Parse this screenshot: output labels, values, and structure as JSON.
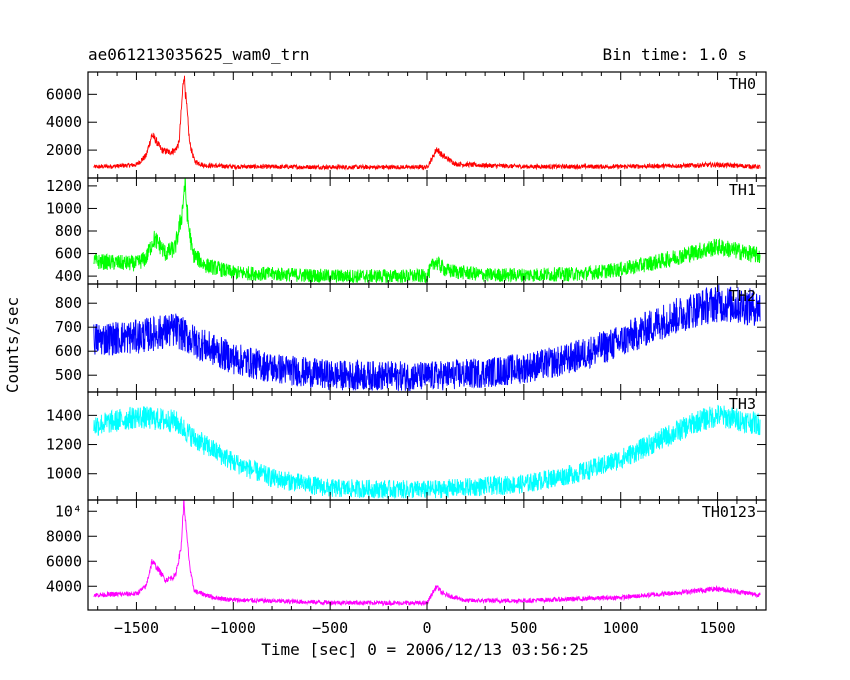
{
  "chart_data": {
    "type": "line",
    "title": "ae061213035625_wam0_trn",
    "bin_time_label": "Bin time: 1.0 s",
    "xlabel": "Time [sec] 0 = 2006/12/13 03:56:25",
    "ylabel": "Counts/sec",
    "xlim": [
      -1750,
      1750
    ],
    "x_ticks": [
      -1500,
      -1000,
      -500,
      0,
      500,
      1000,
      1500
    ],
    "x_tick_labels": [
      "−1500",
      "−1000",
      "−500",
      "0",
      "500",
      "1000",
      "1500"
    ],
    "panels": [
      {
        "name": "TH0",
        "color": "#ff0000",
        "ylim": [
          0,
          7600
        ],
        "yticks": [
          2000,
          4000,
          6000
        ],
        "ytick_labels": [
          "2000",
          "4000",
          "6000"
        ],
        "noise": 120,
        "points": [
          [
            -1720,
            800
          ],
          [
            -1600,
            850
          ],
          [
            -1500,
            950
          ],
          [
            -1450,
            1600
          ],
          [
            -1420,
            3100
          ],
          [
            -1400,
            2700
          ],
          [
            -1370,
            2000
          ],
          [
            -1330,
            1850
          ],
          [
            -1300,
            2000
          ],
          [
            -1280,
            2500
          ],
          [
            -1265,
            5500
          ],
          [
            -1255,
            7500
          ],
          [
            -1240,
            5000
          ],
          [
            -1225,
            2500
          ],
          [
            -1200,
            1200
          ],
          [
            -1150,
            900
          ],
          [
            -1000,
            820
          ],
          [
            -500,
            780
          ],
          [
            0,
            780
          ],
          [
            30,
            1500
          ],
          [
            50,
            2100
          ],
          [
            80,
            1600
          ],
          [
            150,
            1000
          ],
          [
            300,
            900
          ],
          [
            500,
            820
          ],
          [
            1000,
            820
          ],
          [
            1300,
            880
          ],
          [
            1500,
            950
          ],
          [
            1720,
            800
          ]
        ]
      },
      {
        "name": "TH1",
        "color": "#00ff00",
        "ylim": [
          330,
          1270
        ],
        "yticks": [
          400,
          600,
          800,
          1000,
          1200
        ],
        "ytick_labels": [
          "400",
          "600",
          "800",
          "1000",
          "1200"
        ],
        "noise": 55,
        "points": [
          [
            -1720,
            530
          ],
          [
            -1500,
            510
          ],
          [
            -1450,
            560
          ],
          [
            -1410,
            730
          ],
          [
            -1390,
            700
          ],
          [
            -1350,
            600
          ],
          [
            -1300,
            650
          ],
          [
            -1265,
            950
          ],
          [
            -1250,
            1230
          ],
          [
            -1235,
            900
          ],
          [
            -1210,
            600
          ],
          [
            -1150,
            500
          ],
          [
            -1000,
            430
          ],
          [
            -500,
            400
          ],
          [
            0,
            400
          ],
          [
            40,
            530
          ],
          [
            100,
            450
          ],
          [
            300,
            410
          ],
          [
            500,
            410
          ],
          [
            800,
            420
          ],
          [
            1000,
            460
          ],
          [
            1200,
            530
          ],
          [
            1400,
            620
          ],
          [
            1500,
            660
          ],
          [
            1720,
            580
          ]
        ]
      },
      {
        "name": "TH2",
        "color": "#0000ff",
        "ylim": [
          430,
          880
        ],
        "yticks": [
          500,
          600,
          700,
          800
        ],
        "ytick_labels": [
          "500",
          "600",
          "700",
          "800"
        ],
        "noise": 55,
        "points": [
          [
            -1720,
            650
          ],
          [
            -1500,
            660
          ],
          [
            -1300,
            690
          ],
          [
            -1200,
            640
          ],
          [
            -1000,
            570
          ],
          [
            -800,
            530
          ],
          [
            -500,
            500
          ],
          [
            0,
            495
          ],
          [
            300,
            510
          ],
          [
            500,
            530
          ],
          [
            700,
            560
          ],
          [
            1000,
            640
          ],
          [
            1200,
            720
          ],
          [
            1400,
            780
          ],
          [
            1500,
            800
          ],
          [
            1720,
            780
          ]
        ]
      },
      {
        "name": "TH3",
        "color": "#00ffff",
        "ylim": [
          820,
          1560
        ],
        "yticks": [
          1000,
          1200,
          1400
        ],
        "ytick_labels": [
          "1000",
          "1200",
          "1400"
        ],
        "noise": 60,
        "points": [
          [
            -1720,
            1330
          ],
          [
            -1500,
            1390
          ],
          [
            -1300,
            1360
          ],
          [
            -1200,
            1240
          ],
          [
            -1000,
            1080
          ],
          [
            -800,
            970
          ],
          [
            -500,
            900
          ],
          [
            0,
            890
          ],
          [
            500,
            930
          ],
          [
            800,
            1010
          ],
          [
            1000,
            1100
          ],
          [
            1200,
            1230
          ],
          [
            1400,
            1360
          ],
          [
            1500,
            1400
          ],
          [
            1720,
            1340
          ]
        ]
      },
      {
        "name": "TH0123",
        "color": "#ff00ff",
        "ylim": [
          2100,
          10900
        ],
        "yticks": [
          4000,
          6000,
          8000,
          10000
        ],
        "ytick_labels": [
          "4000",
          "6000",
          "8000",
          "10⁴"
        ],
        "noise": 150,
        "points": [
          [
            -1720,
            3300
          ],
          [
            -1500,
            3400
          ],
          [
            -1450,
            4000
          ],
          [
            -1420,
            6000
          ],
          [
            -1390,
            5400
          ],
          [
            -1350,
            4500
          ],
          [
            -1300,
            4800
          ],
          [
            -1270,
            7000
          ],
          [
            -1255,
            10800
          ],
          [
            -1240,
            8000
          ],
          [
            -1220,
            5000
          ],
          [
            -1200,
            3600
          ],
          [
            -1100,
            3100
          ],
          [
            -1000,
            2900
          ],
          [
            -500,
            2700
          ],
          [
            0,
            2650
          ],
          [
            30,
            3500
          ],
          [
            50,
            4000
          ],
          [
            80,
            3400
          ],
          [
            200,
            2850
          ],
          [
            500,
            2850
          ],
          [
            1000,
            3100
          ],
          [
            1300,
            3500
          ],
          [
            1500,
            3800
          ],
          [
            1720,
            3300
          ]
        ]
      }
    ]
  }
}
